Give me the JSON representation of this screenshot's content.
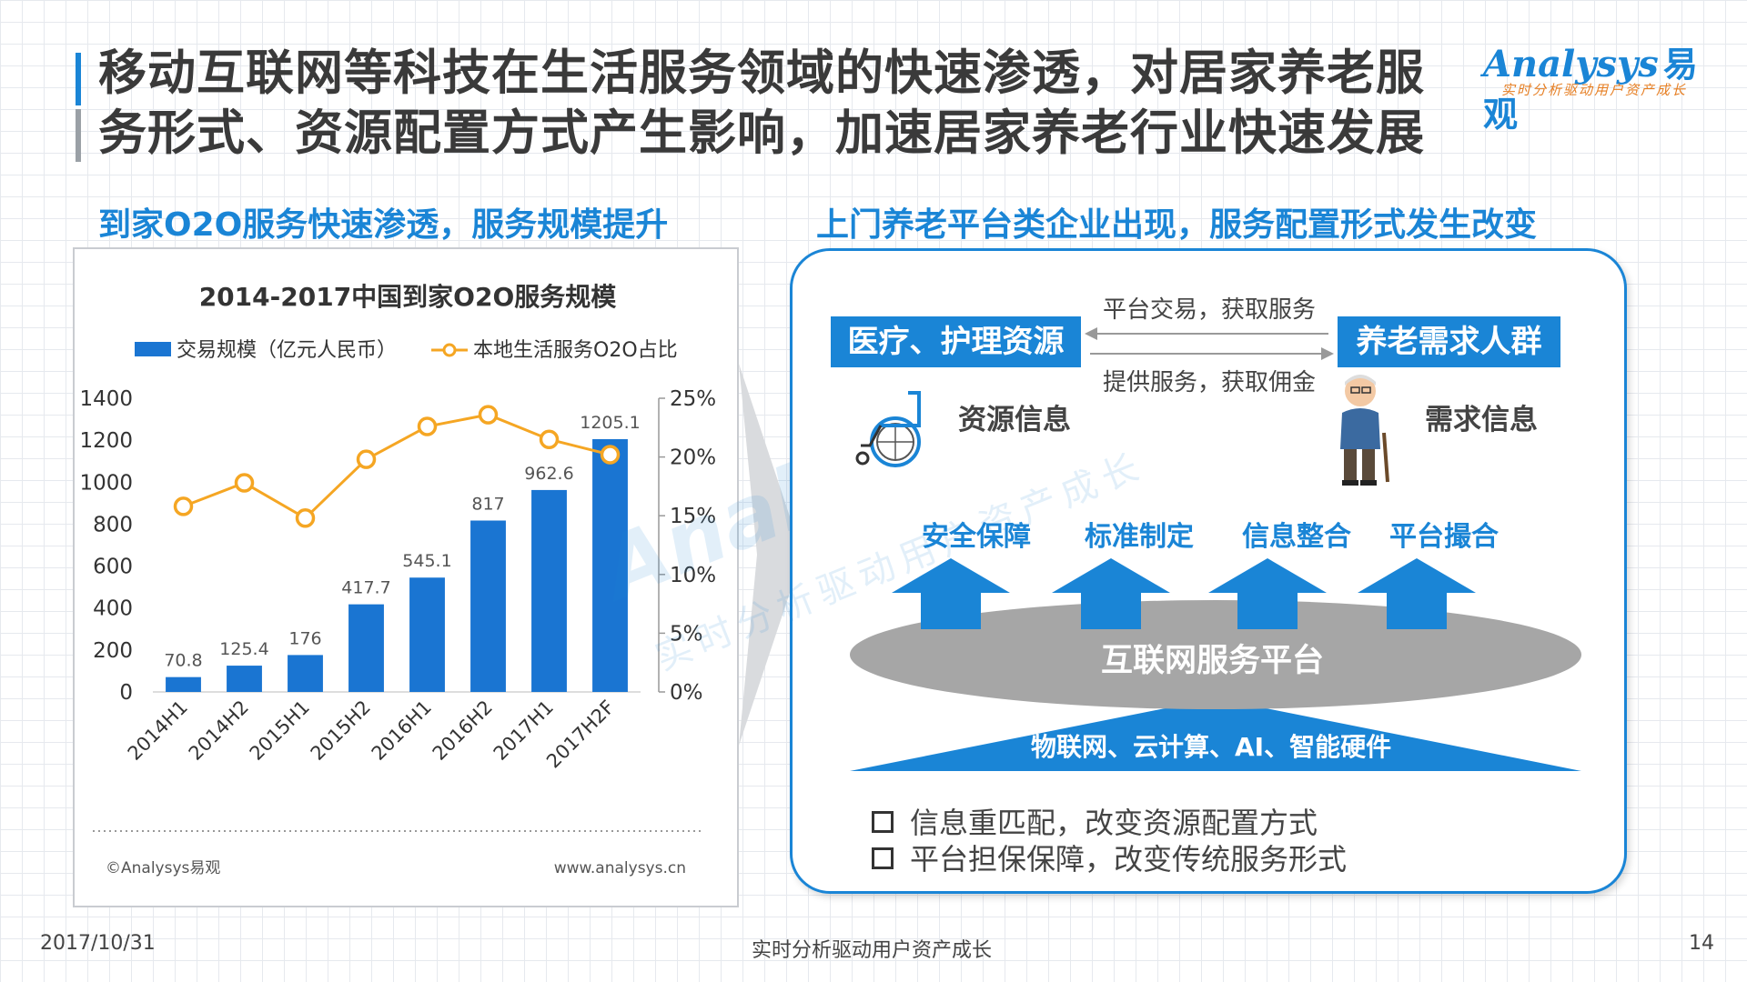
{
  "title": {
    "line1": "移动互联网等科技在生活服务领域的快速渗透，对居家养老服",
    "line2": "务形式、资源配置方式产生影响，加速居家养老行业快速发展"
  },
  "logo": {
    "brand": "Analysys",
    "brand_cn": "易观",
    "slogan": "实时分析驱动用户资产成长"
  },
  "left_heading": "到家O2O服务快速渗透，服务规模提升",
  "right_heading": "上门养老平台类企业出现，服务配置形式发生改变",
  "chart_data": {
    "type": "bar+line",
    "title": "2014-2017中国到家O2O服务规模",
    "categories": [
      "2014H1",
      "2014H2",
      "2015H1",
      "2015H2",
      "2016H1",
      "2016H2",
      "2017H1",
      "2017H2F"
    ],
    "series": [
      {
        "name": "交易规模（亿元人民币）",
        "type": "bar",
        "axis": "left",
        "color": "#1a75d2",
        "values": [
          70.8,
          125.4,
          176,
          417.7,
          545.1,
          817,
          962.6,
          1205.1
        ]
      },
      {
        "name": "本地生活服务O2O占比",
        "type": "line",
        "axis": "right",
        "color": "#f5a623",
        "values": [
          15.8,
          17.8,
          14.8,
          19.8,
          22.6,
          23.6,
          21.5,
          20.2
        ]
      }
    ],
    "ylim_left": [
      0,
      1400
    ],
    "yticks_left": [
      "0",
      "200",
      "400",
      "600",
      "800",
      "1000",
      "1200",
      "1400"
    ],
    "ylim_right": [
      0,
      25
    ],
    "yticks_right": [
      "0%",
      "5%",
      "10%",
      "15%",
      "20%",
      "25%"
    ],
    "legend_position": "top",
    "grid": false,
    "source_left": "©Analysys易观",
    "source_right": "www.analysys.cn"
  },
  "diagram": {
    "left_box": "医疗、护理资源",
    "right_box": "养老需求人群",
    "arrow_top_label": "平台交易，获取服务",
    "arrow_bottom_label": "提供服务，获取佣金",
    "left_info": "资源信息",
    "right_info": "需求信息",
    "up_labels": [
      "安全保障",
      "标准制定",
      "信息整合",
      "平台撮合"
    ],
    "platform": "互联网服务平台",
    "base": "物联网、云计算、AI、智能硬件",
    "bullets": [
      "信息重匹配，改变资源配置方式",
      "平台担保保障，改变传统服务形式"
    ],
    "colors": {
      "accent": "#1a85d6",
      "platform": "#a6a6a6"
    }
  },
  "footer": {
    "date": "2017/10/31",
    "slogan": "实时分析驱动用户资产成长",
    "page": "14"
  }
}
